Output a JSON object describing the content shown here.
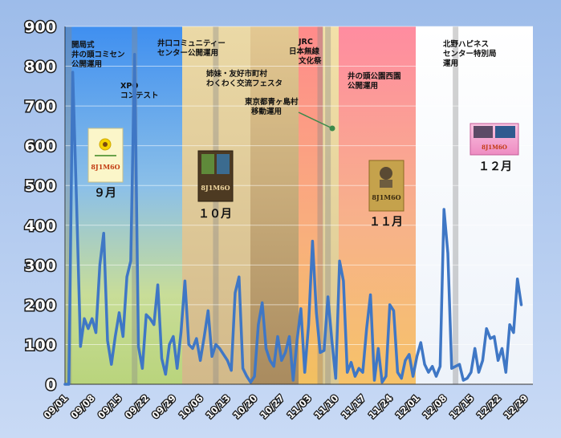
{
  "chart_data": {
    "type": "line",
    "xlabel": "",
    "ylabel": "",
    "ylim": [
      0,
      900
    ],
    "yticks": [
      0,
      100,
      200,
      300,
      400,
      500,
      600,
      700,
      800,
      900
    ],
    "x_start": "09/01",
    "x_end": "12/31",
    "xtick_labels": [
      "09/01",
      "09/08",
      "09/15",
      "09/22",
      "09/29",
      "10/06",
      "10/13",
      "10/20",
      "10/27",
      "11/03",
      "11/10",
      "11/17",
      "11/24",
      "12/01",
      "12/08",
      "12/15",
      "12/22",
      "12/29"
    ],
    "grid": "horizontal",
    "series": [
      {
        "color": "#3f77c5",
        "values": [
          0,
          0,
          785,
          450,
          95,
          165,
          140,
          165,
          130,
          300,
          380,
          110,
          50,
          120,
          180,
          120,
          270,
          310,
          830,
          95,
          40,
          175,
          165,
          150,
          250,
          65,
          25,
          100,
          120,
          40,
          130,
          260,
          100,
          90,
          115,
          60,
          120,
          185,
          70,
          100,
          90,
          75,
          60,
          35,
          230,
          270,
          40,
          20,
          5,
          20,
          150,
          205,
          90,
          60,
          45,
          120,
          60,
          80,
          120,
          10,
          110,
          190,
          30,
          150,
          360,
          180,
          80,
          85,
          220,
          110,
          15,
          310,
          260,
          30,
          55,
          20,
          40,
          30,
          140,
          225,
          10,
          90,
          5,
          20,
          200,
          185,
          30,
          15,
          60,
          75,
          20,
          70,
          105,
          50,
          30,
          45,
          20,
          45,
          440,
          330,
          40,
          45,
          50,
          10,
          15,
          30,
          90,
          30,
          60,
          140,
          115,
          120,
          60,
          90,
          30,
          150,
          130,
          265,
          200
        ]
      }
    ],
    "event_markers": [
      "09/02",
      "09/19",
      "10/10",
      "11/06",
      "11/08",
      "12/11"
    ],
    "period_bands": [
      {
        "from": "09/01",
        "to": "09/27",
        "color": "#6aaef0"
      },
      {
        "from": "09/27",
        "to": "10/12",
        "color": "#ebd9a6"
      },
      {
        "from": "10/12",
        "to": "11/02",
        "color": "#c9ab7a"
      },
      {
        "from": "11/02",
        "to": "11/07",
        "color": "#ff8b8b"
      },
      {
        "from": "11/07",
        "to": "11/11",
        "color": "#f3e0a8"
      },
      {
        "from": "11/11",
        "to": "11/28",
        "color": "#ff8ca0"
      },
      {
        "from": "11/28",
        "to": "12/31",
        "color": "#ffffff"
      }
    ]
  },
  "annotations": {
    "kaikyoku": [
      "開局式",
      "井の頭コミセン",
      "公開運用"
    ],
    "xpo": [
      "XPO",
      "コンテスト"
    ],
    "inokuchi": [
      "井口コミュニティー",
      "センター公開運用"
    ],
    "shimai": [
      "姉妹・友好市町村",
      "わくわく交流フェスタ"
    ],
    "aogashima": [
      "東京都青ヶ島村",
      "移動運用"
    ],
    "jrc": [
      "JRC",
      "日本無線",
      "文化祭"
    ],
    "koen": [
      "井の頭公園西園",
      "公開運用"
    ],
    "kitano": [
      "北野ハピネス",
      "センター特別局",
      "運用"
    ]
  },
  "months": [
    "９月",
    "１０月",
    "１１月",
    "１２月"
  ],
  "cards": {
    "callsign": "8J1M6O"
  }
}
